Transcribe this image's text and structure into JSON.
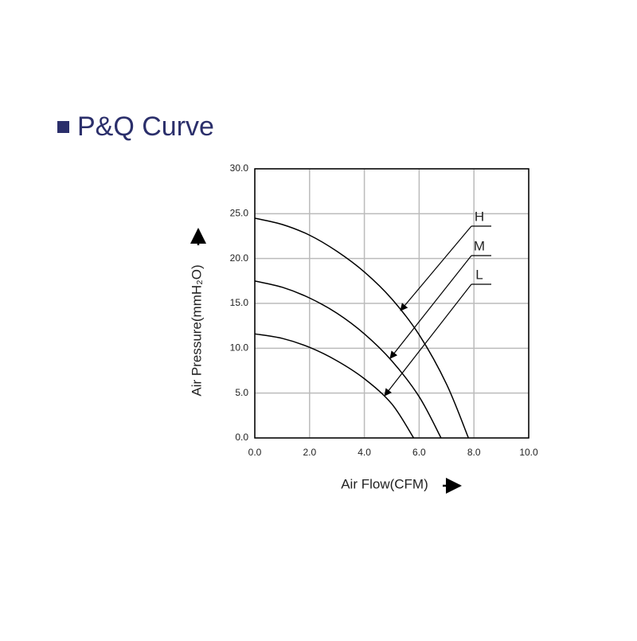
{
  "chart_data": {
    "type": "line",
    "title": "P&Q Curve",
    "x_label": "Air Flow(CFM)",
    "y_label": "Air Pressure(mmH₂O)",
    "xlim": [
      0,
      10
    ],
    "ylim": [
      0,
      30
    ],
    "xticks": [
      {
        "value": 0,
        "label": "0.0"
      },
      {
        "value": 2,
        "label": "2.0"
      },
      {
        "value": 4,
        "label": "4.0"
      },
      {
        "value": 6,
        "label": "6.0"
      },
      {
        "value": 8,
        "label": "8.0"
      },
      {
        "value": 10,
        "label": "10.0"
      }
    ],
    "yticks": [
      {
        "value": 0,
        "label": "0.0"
      },
      {
        "value": 5,
        "label": "5.0"
      },
      {
        "value": 10,
        "label": "10.0"
      },
      {
        "value": 15,
        "label": "15.0"
      },
      {
        "value": 20,
        "label": "20.0"
      },
      {
        "value": 25,
        "label": "25.0"
      },
      {
        "value": 30,
        "label": "30.0"
      }
    ],
    "grid": true,
    "series": [
      {
        "name": "H",
        "color": "#000000",
        "x": [
          0,
          1,
          2,
          3,
          4,
          5,
          6,
          7,
          7.8
        ],
        "values": [
          24.5,
          23.8,
          22.6,
          20.8,
          18.5,
          15.5,
          11.5,
          6,
          0
        ]
      },
      {
        "name": "M",
        "color": "#000000",
        "x": [
          0,
          1,
          2,
          3,
          4,
          5,
          6,
          6.8
        ],
        "values": [
          17.5,
          16.8,
          15.6,
          13.9,
          11.6,
          8.6,
          4.6,
          0
        ]
      },
      {
        "name": "L",
        "color": "#000000",
        "x": [
          0,
          1,
          2,
          3,
          4,
          5,
          5.8
        ],
        "values": [
          11.6,
          11.1,
          10.1,
          8.6,
          6.6,
          3.8,
          0
        ]
      }
    ]
  }
}
